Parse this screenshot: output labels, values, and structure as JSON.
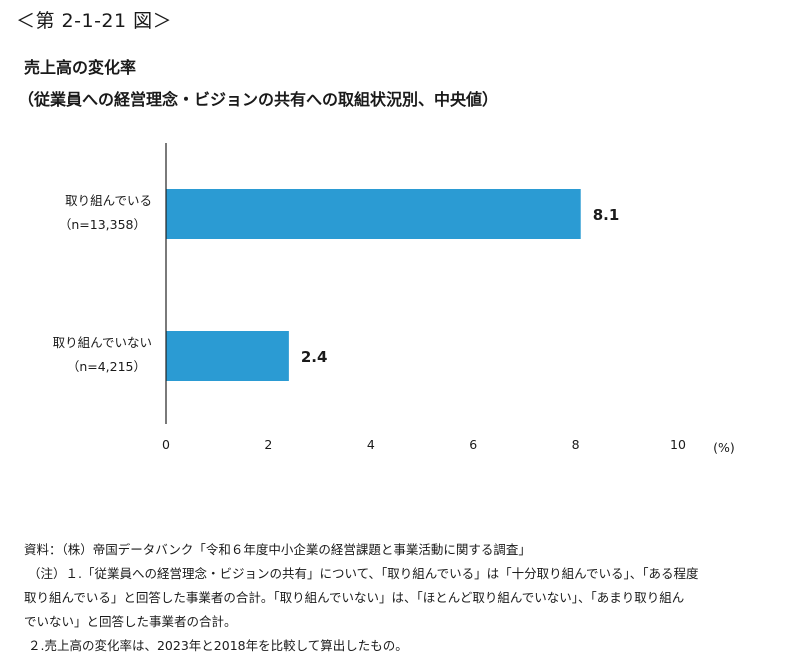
{
  "figure_label": "＜第 2-1-21 図＞",
  "title": "売上高の変化率",
  "subtitle": "（従業員への経営理念・ビジョンの共有への取組状況別、中央値）",
  "chart_data": {
    "type": "bar",
    "orientation": "horizontal",
    "categories": [
      {
        "label": "取り組んでいる",
        "n": "（n=13,358）"
      },
      {
        "label": "取り組んでいない",
        "n": "（n=4,215）"
      }
    ],
    "values": [
      8.1,
      2.4
    ],
    "value_labels": [
      "8.1",
      "2.4"
    ],
    "xlim": [
      0,
      10
    ],
    "xticks": [
      "0",
      "2",
      "4",
      "6",
      "8",
      "10"
    ],
    "xunit": "(%)",
    "bar_color": "#2b9bd3",
    "grid": false,
    "legend": "none"
  },
  "notes": {
    "source": "資料：（株）帝国データバンク「令和６年度中小企業の経営課題と事業活動に関する調査」",
    "note1_a": "（注）１.「従業員への経営理念・ビジョンの共有」について、「取り組んでいる」は「十分取り組んでいる」、「ある程度",
    "note1_b": "取り組んでいる」と回答した事業者の合計。「取り組んでいない」は、「ほとんど取り組んでいない」、「あまり取り組ん",
    "note1_c": "でいない」と回答した事業者の合計。",
    "note2": "２.売上高の変化率は、2023年と2018年を比較して算出したもの。"
  }
}
